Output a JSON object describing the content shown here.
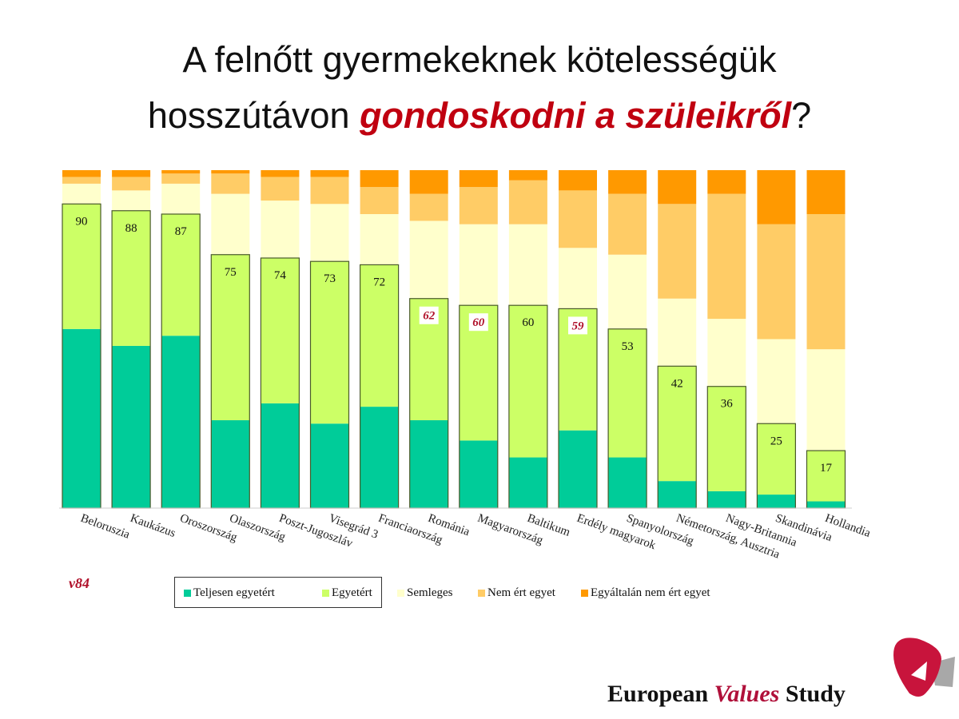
{
  "title": {
    "line1": "A felnőtt gyermekeknek kötelességük",
    "line2_prefix": "hosszútávon ",
    "line2_highlight": "gondoskodni a szüleikről",
    "line2_suffix": "?"
  },
  "variable_code": "v84",
  "footer": {
    "brand_part1": "European ",
    "brand_part2": "Values",
    "brand_part3": " Study"
  },
  "chart_data": {
    "type": "bar",
    "stacked": true,
    "title": "A felnőtt gyermekeknek kötelességük hosszútávon gondoskodni a szüleikről?",
    "categories": [
      "Beloruszia",
      "Kaukázus",
      "Oroszország",
      "Olaszország",
      "Poszt-Jugoszláv",
      "Visegrád 3",
      "Franciaország",
      "Románia",
      "Magyarország",
      "Baltikum",
      "Erdély magyarok",
      "Spanyolország",
      "Németország, Ausztria",
      "Nagy-Britannia",
      "Skandinávia",
      "Hollandia"
    ],
    "series": [
      {
        "name": "Teljesen egyetért",
        "color": "#00CC99",
        "values": [
          53,
          48,
          51,
          26,
          31,
          25,
          30,
          26,
          20,
          15,
          23,
          15,
          8,
          5,
          4,
          2
        ]
      },
      {
        "name": "Egyetért",
        "color": "#CCFF66",
        "values": [
          37,
          40,
          36,
          49,
          43,
          48,
          42,
          36,
          40,
          45,
          36,
          38,
          34,
          31,
          21,
          15
        ]
      },
      {
        "name": "Semleges",
        "color": "#FFFFCC",
        "values": [
          6,
          6,
          9,
          18,
          17,
          17,
          15,
          23,
          24,
          24,
          18,
          22,
          20,
          20,
          25,
          30
        ]
      },
      {
        "name": "Nem ért egyet",
        "color": "#FFCC66",
        "values": [
          2,
          4,
          3,
          6,
          7,
          8,
          8,
          8,
          11,
          13,
          17,
          18,
          28,
          37,
          34,
          40
        ]
      },
      {
        "name": "Egyáltalán nem ért egyet",
        "color": "#FF9900",
        "values": [
          2,
          2,
          1,
          1,
          2,
          2,
          5,
          7,
          5,
          3,
          6,
          7,
          10,
          7,
          16,
          13
        ]
      }
    ],
    "data_labels": {
      "name": "Teljesen egyetért + Egyetért",
      "values": [
        "90",
        "88",
        "87",
        "75",
        "74",
        "73",
        "72",
        "62",
        "60",
        "60",
        "59",
        "53",
        "42",
        "36",
        "25",
        "17"
      ],
      "highlighted": [
        false,
        false,
        false,
        false,
        false,
        false,
        false,
        true,
        true,
        false,
        true,
        false,
        false,
        false,
        false,
        false
      ],
      "highlight_color": "#B0102A"
    },
    "ylim": [
      0,
      100
    ],
    "xlabel": "",
    "ylabel": "",
    "grid": false,
    "legend_placement": "bottom"
  }
}
